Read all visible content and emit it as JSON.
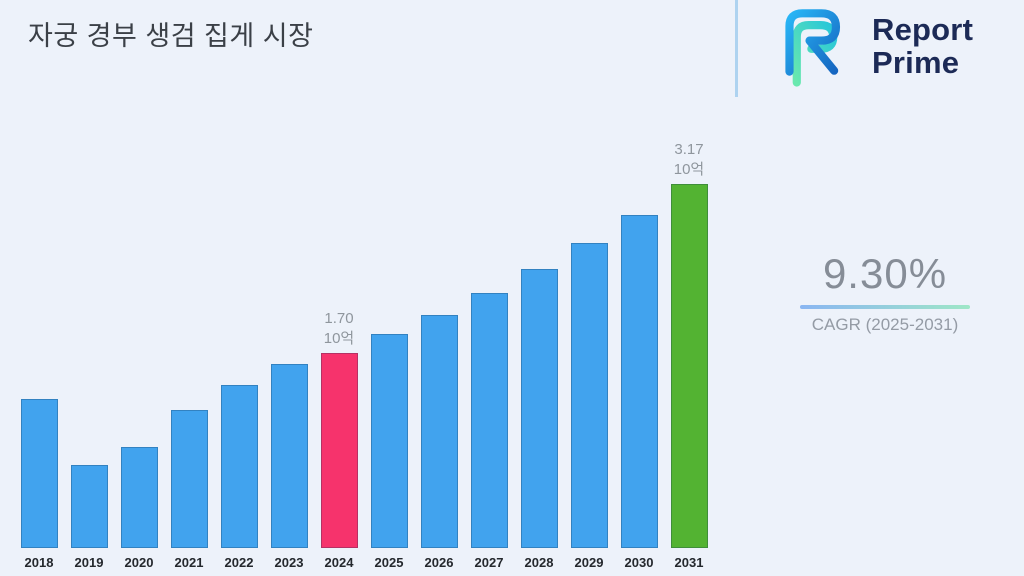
{
  "title": "자궁 경부 생검 집게 시장",
  "logo": {
    "line1": "Report",
    "line2": "Prime"
  },
  "stats": {
    "cagr_value": "9.30%",
    "cagr_label": "CAGR (2025-2031)"
  },
  "chart_data": {
    "type": "bar",
    "title": "자궁 경부 생검 집게 시장",
    "xlabel": "",
    "ylabel": "10억",
    "ylim": [
      0,
      3.5
    ],
    "grid": false,
    "legend": "none",
    "categories": [
      "2018",
      "2019",
      "2020",
      "2021",
      "2022",
      "2023",
      "2024",
      "2025",
      "2026",
      "2027",
      "2028",
      "2029",
      "2030",
      "2031"
    ],
    "values": [
      1.3,
      0.72,
      0.88,
      1.2,
      1.42,
      1.6,
      1.7,
      1.86,
      2.03,
      2.22,
      2.43,
      2.66,
      2.9,
      3.17
    ],
    "colors": {
      "default": "#41a3ee",
      "highlight_2024": "#f6336c",
      "highlight_2031": "#53b332"
    },
    "color_overrides": {
      "6": "#f6336c",
      "13": "#53b332"
    },
    "annotations": [
      {
        "index": 6,
        "value_label": "1.70",
        "unit": "10억"
      },
      {
        "index": 13,
        "value_label": "3.17",
        "unit": "10억"
      }
    ]
  }
}
